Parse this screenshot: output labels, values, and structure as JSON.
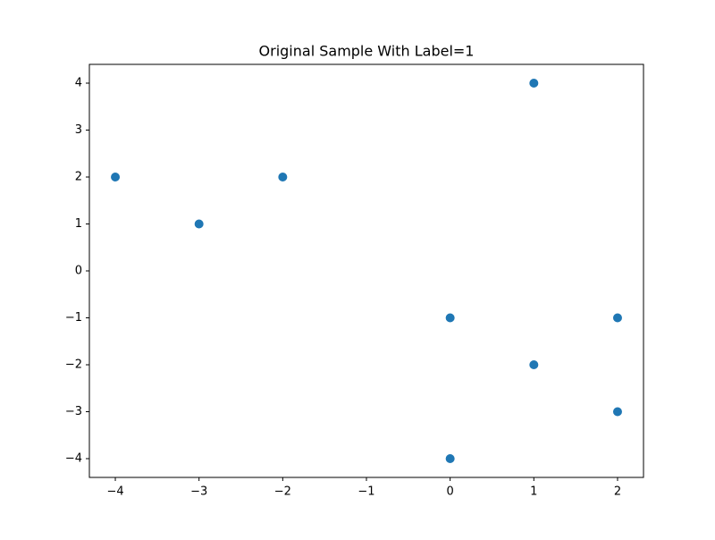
{
  "chart_data": {
    "type": "scatter",
    "title": "Original Sample With Label=1",
    "series": [
      {
        "color": "#1f77b4",
        "x": [
          -4,
          -3,
          -2,
          0,
          1,
          1,
          2,
          2,
          0
        ],
        "values": [
          2,
          1,
          2,
          -1,
          4,
          -2,
          -1,
          -3,
          -4
        ]
      }
    ],
    "xlim": [
      -4.31,
      2.31
    ],
    "ylim": [
      -4.4,
      4.4
    ],
    "xticks": [
      {
        "value": -4,
        "label": "−4"
      },
      {
        "value": -3,
        "label": "−3"
      },
      {
        "value": -2,
        "label": "−2"
      },
      {
        "value": -1,
        "label": "−1"
      },
      0,
      1,
      2
    ],
    "yticks": [
      {
        "value": -4,
        "label": "−4"
      },
      {
        "value": -3,
        "label": "−3"
      },
      {
        "value": -2,
        "label": "−2"
      },
      {
        "value": -1,
        "label": "−1"
      },
      0,
      1,
      2,
      3,
      4
    ],
    "grid": false
  }
}
